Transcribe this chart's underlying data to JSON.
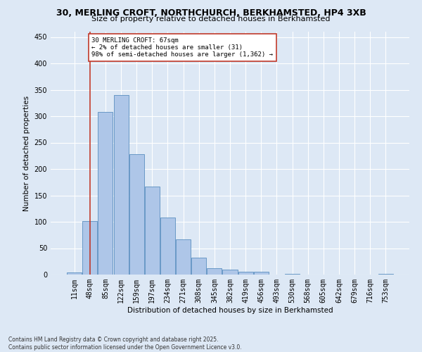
{
  "title_line1": "30, MERLING CROFT, NORTHCHURCH, BERKHAMSTED, HP4 3XB",
  "title_line2": "Size of property relative to detached houses in Berkhamsted",
  "xlabel": "Distribution of detached houses by size in Berkhamsted",
  "ylabel": "Number of detached properties",
  "categories": [
    "11sqm",
    "48sqm",
    "85sqm",
    "122sqm",
    "159sqm",
    "197sqm",
    "234sqm",
    "271sqm",
    "308sqm",
    "345sqm",
    "382sqm",
    "419sqm",
    "456sqm",
    "493sqm",
    "530sqm",
    "568sqm",
    "605sqm",
    "642sqm",
    "679sqm",
    "716sqm",
    "753sqm"
  ],
  "values": [
    4,
    101,
    308,
    340,
    228,
    167,
    108,
    67,
    32,
    12,
    10,
    6,
    5,
    0,
    2,
    0,
    0,
    0,
    0,
    0,
    2
  ],
  "bar_color": "#aec6e8",
  "bar_edge_color": "#5a8fc0",
  "background_color": "#dde8f5",
  "grid_color": "#ffffff",
  "vline_x": 1,
  "vline_color": "#c0392b",
  "annotation_text": "30 MERLING CROFT: 67sqm\n← 2% of detached houses are smaller (31)\n98% of semi-detached houses are larger (1,362) →",
  "annotation_box_color": "#ffffff",
  "annotation_box_edge": "#c0392b",
  "ylim": [
    0,
    460
  ],
  "yticks": [
    0,
    50,
    100,
    150,
    200,
    250,
    300,
    350,
    400,
    450
  ],
  "footer_line1": "Contains HM Land Registry data © Crown copyright and database right 2025.",
  "footer_line2": "Contains public sector information licensed under the Open Government Licence v3.0."
}
